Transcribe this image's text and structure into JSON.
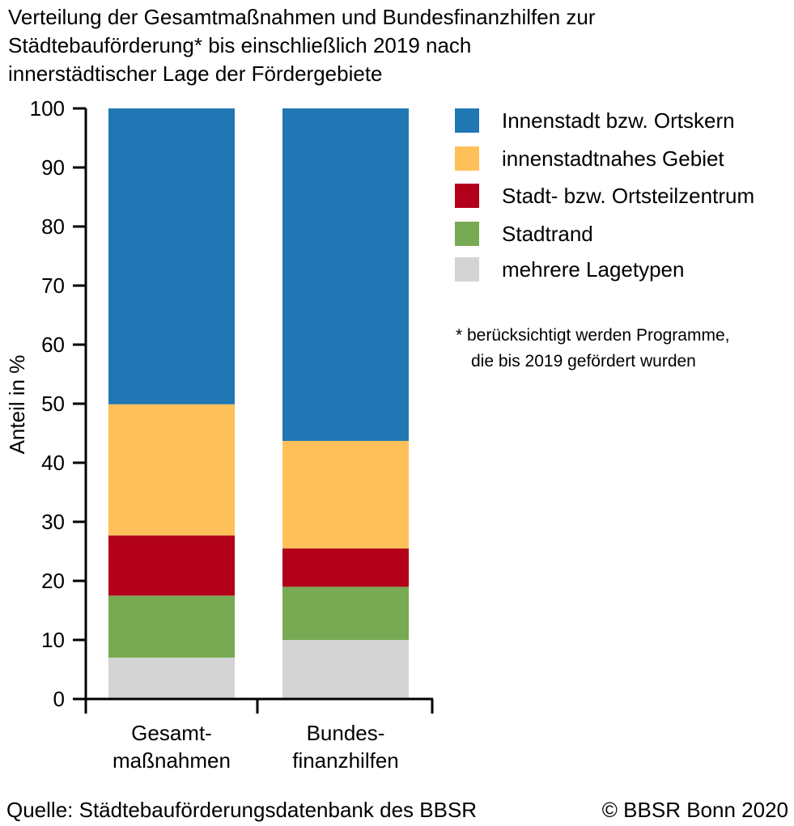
{
  "chart_data": {
    "type": "bar",
    "stacked": true,
    "title_lines": [
      "Verteilung der Gesamtmaßnahmen und Bundesfinanzhilfen zur",
      "Städtebauförderung* bis einschließlich 2019 nach",
      "innerstädtischer Lage der Fördergebiete"
    ],
    "ylabel": "Anteil in %",
    "ylim": [
      0,
      100
    ],
    "yticks": [
      0,
      10,
      20,
      30,
      40,
      50,
      60,
      70,
      80,
      90,
      100
    ],
    "categories": [
      [
        "Gesamt-",
        "maßnahmen"
      ],
      [
        "Bundes-",
        "finanzhilfen"
      ]
    ],
    "series": [
      {
        "name": "mehrere Lagetypen",
        "color": "#d4d4d4",
        "values": [
          7,
          10
        ]
      },
      {
        "name": "Stadtrand",
        "color": "#78aa53",
        "values": [
          10.5,
          9
        ]
      },
      {
        "name": "Stadt- bzw. Ortsteilzentrum",
        "color": "#b3001a",
        "values": [
          10.2,
          6.5
        ]
      },
      {
        "name": "innenstadtnahes Gebiet",
        "color": "#ffc059",
        "values": [
          22.2,
          18.2
        ]
      },
      {
        "name": "Innenstadt bzw. Ortskern",
        "color": "#2077b4",
        "values": [
          50.1,
          56.3
        ]
      }
    ],
    "legend_order": [
      "Innenstadt bzw. Ortskern",
      "innenstadtnahes Gebiet",
      "Stadt- bzw. Ortsteilzentrum",
      "Stadtrand",
      "mehrere Lagetypen"
    ],
    "legend_position": "top-right",
    "grid": false
  },
  "footnote_lines": [
    "* berücksichtigt werden Programme,",
    "die bis 2019 gefördert wurden"
  ],
  "footer": {
    "source": "Quelle: Städtebauförderungsdatenbank des BBSR",
    "copyright": "© BBSR Bonn 2020"
  }
}
